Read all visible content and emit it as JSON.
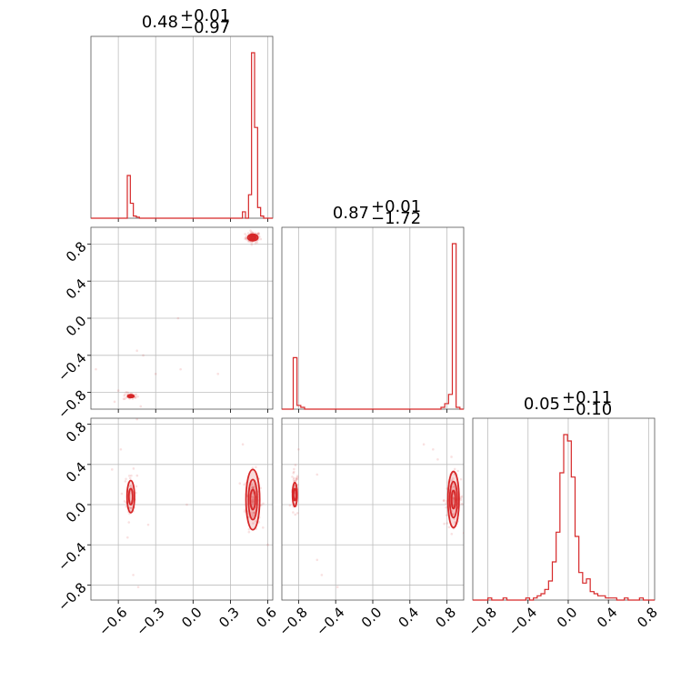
{
  "chart_data": {
    "type": "corner",
    "color": "#d62728",
    "grid": true,
    "parameters": [
      {
        "summary": {
          "median": "0.48",
          "plus": "+0.01",
          "minus": "−0.97"
        },
        "range": [
          -0.82,
          0.64
        ],
        "ticks": [
          -0.6,
          -0.3,
          0.0,
          0.3,
          0.6
        ],
        "tick_labels": [
          "−0.6",
          "−0.3",
          "0.0",
          "0.3",
          "0.6"
        ],
        "histogram": {
          "x_min": -0.82,
          "x_max": 0.64,
          "counts": [
            0,
            0,
            0,
            0,
            0,
            0,
            0,
            0,
            0,
            0,
            0,
            0,
            0,
            0,
            0,
            0,
            0,
            8,
            40,
            2,
            0,
            0,
            0,
            0,
            0,
            0,
            0,
            0,
            0,
            0,
            0,
            0,
            0,
            0,
            0,
            0,
            0,
            0,
            0,
            0,
            0,
            0,
            0,
            0,
            0,
            0,
            0,
            0,
            0,
            0,
            0,
            0,
            0,
            0,
            0,
            0,
            0,
            0,
            0,
            0,
            0,
            0,
            0,
            0,
            0,
            0,
            0,
            0,
            0,
            0,
            0,
            0,
            0,
            0,
            0,
            0,
            0,
            0,
            0,
            0,
            0,
            0,
            0,
            0,
            0,
            0,
            0,
            0,
            0,
            0,
            0,
            0,
            0,
            0,
            0,
            0,
            0,
            0,
            0,
            0,
            0,
            0,
            0,
            0,
            0,
            0,
            0,
            0,
            0,
            0,
            0,
            0,
            0,
            0,
            0,
            0,
            0,
            0,
            0,
            2,
            15,
            40,
            155,
            85,
            12,
            3,
            0,
            0,
            0,
            0,
            0,
            0,
            0,
            0,
            0,
            0,
            0,
            0,
            0,
            0,
            0,
            0,
            0,
            0,
            0,
            0,
            0,
            0,
            0,
            0
          ]
        }
      },
      {
        "summary": {
          "median": "0.87",
          "plus": "+0.01",
          "minus": "−1.72"
        },
        "range": [
          -0.98,
          0.98
        ],
        "ticks": [
          -0.8,
          -0.4,
          0.0,
          0.4,
          0.8
        ],
        "tick_labels": [
          "−0.8",
          "−0.4",
          "0.0",
          "0.4",
          "0.8"
        ],
        "histogram": {
          "x_min": -0.98,
          "x_max": 0.98,
          "counts": [
            0,
            0,
            0,
            0,
            0,
            0,
            0,
            0,
            0,
            0,
            0,
            0,
            0,
            0,
            0,
            0,
            0,
            0,
            0,
            0,
            0,
            0,
            0,
            0,
            0,
            0,
            0,
            0,
            0,
            0,
            0,
            0,
            0,
            0,
            0,
            0,
            0,
            0,
            0,
            0,
            0,
            0,
            0,
            0,
            0,
            0,
            0,
            0,
            0,
            0,
            0,
            0,
            0,
            0,
            0,
            0,
            0,
            0,
            0,
            0,
            0,
            0,
            0,
            0,
            0,
            0,
            0,
            0,
            0,
            0,
            0,
            0,
            0,
            0,
            0,
            0,
            0,
            0,
            0,
            0,
            0,
            0,
            0,
            0,
            0,
            0,
            0,
            0,
            0,
            0,
            0,
            0,
            0,
            0,
            0,
            0,
            0,
            0,
            0,
            0,
            0,
            0,
            0,
            0,
            0,
            0,
            0,
            0,
            0,
            0,
            0,
            0,
            0,
            0,
            0,
            0,
            0,
            0,
            0,
            0,
            0,
            0,
            0,
            0,
            0,
            0,
            0,
            0,
            0,
            0,
            0,
            0,
            0,
            0,
            0,
            0,
            0,
            0,
            0,
            0,
            0,
            0,
            0,
            0,
            0,
            0,
            0,
            0,
            0,
            0
          ]
        }
      },
      {
        "summary": {
          "median": "0.05",
          "plus": "+0.11",
          "minus": "−0.10"
        },
        "range": [
          -0.95,
          0.86
        ],
        "ticks": [
          -0.8,
          -0.4,
          0.0,
          0.4,
          0.8
        ],
        "tick_labels": [
          "−0.8",
          "−0.4",
          "0.0",
          "0.4",
          "0.8"
        ],
        "histogram": {
          "x_min": -0.95,
          "x_max": 0.86,
          "counts": [
            0,
            0,
            0,
            0,
            0,
            0,
            0,
            0,
            0,
            0,
            0,
            0,
            0,
            0,
            0,
            0,
            0,
            0,
            0,
            0,
            0,
            0,
            0,
            0,
            0,
            0,
            0,
            0,
            0,
            0,
            0,
            0,
            0,
            0,
            0,
            0,
            0,
            0,
            0,
            0,
            0,
            0,
            0,
            0,
            0,
            0,
            0,
            0,
            0,
            0,
            0,
            0,
            0,
            0,
            0,
            0,
            0,
            0,
            0,
            0,
            0,
            0,
            0,
            0,
            0,
            0,
            0,
            0,
            0,
            0,
            0,
            0,
            0,
            0,
            0,
            0,
            0,
            0,
            0,
            0,
            0,
            0,
            0,
            0,
            0,
            0,
            0,
            0,
            0,
            0,
            0,
            0,
            0,
            0,
            0,
            0,
            0,
            0,
            0,
            0,
            0,
            0,
            0,
            0,
            0,
            0,
            0,
            0,
            0,
            0,
            0,
            0,
            0,
            0,
            0,
            0,
            0,
            0,
            0,
            0,
            0,
            0,
            0,
            0,
            0,
            0,
            0,
            0,
            0,
            0,
            0,
            0,
            0,
            0,
            0,
            0,
            0,
            0,
            0,
            0,
            0,
            0,
            0,
            0,
            0,
            0,
            0,
            0,
            0,
            0
          ]
        }
      }
    ],
    "hist_overrides": {
      "p1": {
        "x_min": -0.98,
        "x_max": 0.98,
        "bins": 48,
        "counts": [
          0,
          0,
          0,
          28,
          2,
          1,
          0,
          0,
          0,
          0,
          0,
          0,
          0,
          0,
          0,
          0,
          0,
          0,
          0,
          0,
          0,
          0,
          0,
          0,
          0,
          0,
          0,
          0,
          0,
          0,
          0,
          0,
          0,
          0,
          0,
          0,
          0,
          0,
          0,
          0,
          0,
          0,
          1,
          3,
          8,
          90,
          1,
          0
        ]
      },
      "p2": {
        "x_min": -0.95,
        "x_max": 0.86,
        "bins": 48,
        "counts": [
          0,
          0,
          0,
          0,
          1,
          0,
          0,
          0,
          1,
          0,
          0,
          0,
          0,
          0,
          1,
          0,
          1,
          2,
          3,
          5,
          9,
          18,
          32,
          60,
          78,
          75,
          58,
          30,
          13,
          8,
          10,
          4,
          3,
          2,
          2,
          1,
          1,
          1,
          0,
          0,
          1,
          0,
          0,
          0,
          1,
          0,
          0,
          0
        ]
      }
    },
    "pairs": [
      {
        "x_param": 0,
        "y_param": 1,
        "clusters": [
          {
            "center": [
              0.48,
              0.87
            ],
            "spread": [
              0.03,
              0.03
            ],
            "n": 90,
            "contours": [
              [
                0.04,
                0.035
              ],
              [
                0.025,
                0.02
              ],
              [
                0.012,
                0.01
              ]
            ]
          },
          {
            "center": [
              -0.5,
              -0.84
            ],
            "spread": [
              0.03,
              0.02
            ],
            "n": 30,
            "contours": [
              [
                0.025,
                0.015
              ],
              [
                0.014,
                0.009
              ]
            ]
          }
        ],
        "outliers": [
          [
            -0.78,
            -0.55
          ],
          [
            -0.6,
            -0.78
          ],
          [
            -0.45,
            -0.35
          ],
          [
            -0.4,
            -0.4
          ],
          [
            -0.3,
            -0.6
          ],
          [
            -0.1,
            -0.55
          ],
          [
            -0.12,
            0.0
          ],
          [
            0.2,
            -0.6
          ],
          [
            -0.42,
            -0.95
          ],
          [
            -0.63,
            -0.9
          ]
        ]
      },
      {
        "x_param": 0,
        "y_param": 2,
        "clusters": [
          {
            "center": [
              0.48,
              0.05
            ],
            "spread": [
              0.03,
              0.14
            ],
            "n": 110,
            "contours": [
              [
                0.055,
                0.3
              ],
              [
                0.035,
                0.2
              ],
              [
                0.02,
                0.1
              ]
            ]
          },
          {
            "center": [
              -0.5,
              0.08
            ],
            "spread": [
              0.025,
              0.12
            ],
            "n": 50,
            "contours": [
              [
                0.03,
                0.16
              ],
              [
                0.015,
                0.08
              ]
            ]
          }
        ],
        "outliers": [
          [
            -0.45,
            0.85
          ],
          [
            -0.58,
            0.55
          ],
          [
            -0.48,
            -0.7
          ],
          [
            -0.44,
            -0.82
          ],
          [
            -0.36,
            -0.2
          ],
          [
            0.4,
            0.6
          ],
          [
            0.6,
            -0.4
          ],
          [
            -0.65,
            0.35
          ],
          [
            -0.05,
            0.0
          ]
        ]
      },
      {
        "x_param": 1,
        "y_param": 2,
        "clusters": [
          {
            "center": [
              0.87,
              0.05
            ],
            "spread": [
              0.05,
              0.13
            ],
            "n": 110,
            "contours": [
              [
                0.06,
                0.28
              ],
              [
                0.04,
                0.18
              ],
              [
                0.02,
                0.09
              ]
            ]
          },
          {
            "center": [
              -0.84,
              0.1
            ],
            "spread": [
              0.02,
              0.12
            ],
            "n": 50,
            "contours": [
              [
                0.025,
                0.12
              ],
              [
                0.013,
                0.06
              ]
            ]
          }
        ],
        "outliers": [
          [
            0.65,
            0.55
          ],
          [
            0.7,
            0.45
          ],
          [
            -0.38,
            -0.82
          ],
          [
            -0.55,
            -0.7
          ],
          [
            -0.6,
            -0.55
          ],
          [
            -0.8,
            0.55
          ],
          [
            -0.6,
            0.3
          ],
          [
            -0.4,
            0.95
          ],
          [
            0.55,
            0.6
          ]
        ]
      }
    ]
  }
}
